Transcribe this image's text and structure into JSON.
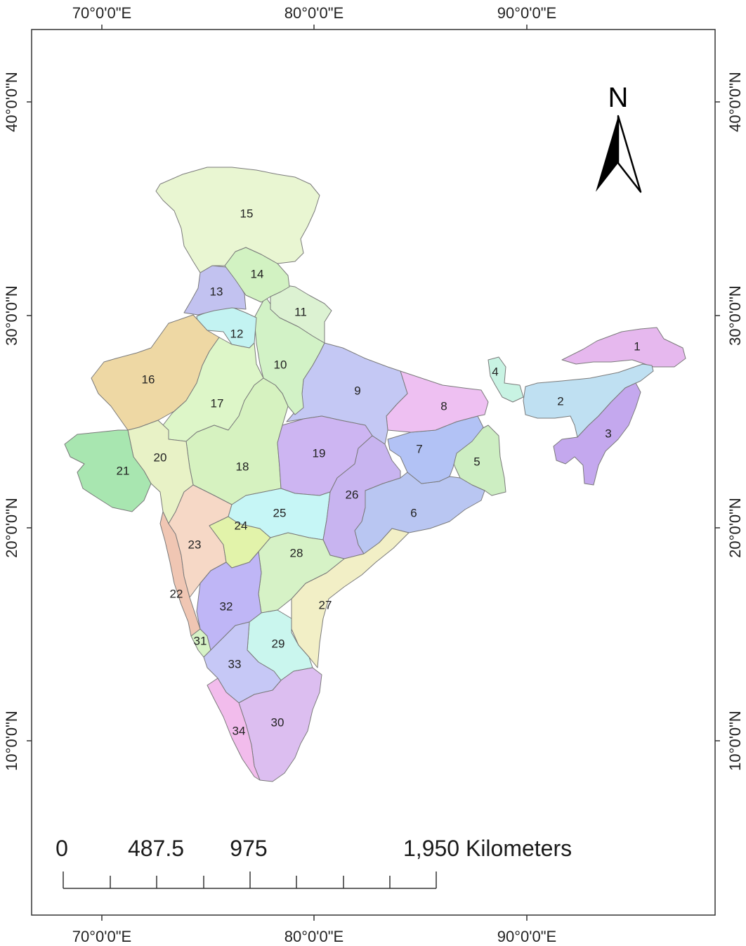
{
  "map": {
    "lon_labels": [
      "70°0'0\"E",
      "80°0'0\"E",
      "90°0'0\"E"
    ],
    "lat_labels": [
      "40°0'0\"N",
      "30°0'0\"N",
      "20°0'0\"N",
      "10°0'0\"N"
    ],
    "north_label": "N",
    "scale_bar": {
      "labels": [
        "0",
        "487.5",
        "975",
        "1,950 Kilometers"
      ]
    },
    "regions": [
      {
        "id": "1",
        "color": "#e6b8ee"
      },
      {
        "id": "2",
        "color": "#bfe0f2"
      },
      {
        "id": "3",
        "color": "#c4a8ee"
      },
      {
        "id": "4",
        "color": "#c8f3e3"
      },
      {
        "id": "5",
        "color": "#cdeec2"
      },
      {
        "id": "6",
        "color": "#b9c6f2"
      },
      {
        "id": "7",
        "color": "#b2c2f5"
      },
      {
        "id": "8",
        "color": "#eec0f2"
      },
      {
        "id": "9",
        "color": "#c4c8f4"
      },
      {
        "id": "10",
        "color": "#d2f2c6"
      },
      {
        "id": "11",
        "color": "#dcf2d2"
      },
      {
        "id": "12",
        "color": "#c3f3f2"
      },
      {
        "id": "13",
        "color": "#c2c2f0"
      },
      {
        "id": "14",
        "color": "#d2f2c2"
      },
      {
        "id": "15",
        "color": "#e9f6d2"
      },
      {
        "id": "16",
        "color": "#eed8a4"
      },
      {
        "id": "17",
        "color": "#ddf6c8"
      },
      {
        "id": "18",
        "color": "#d6f2c0"
      },
      {
        "id": "19",
        "color": "#cdb5f2"
      },
      {
        "id": "20",
        "color": "#e8f2c6"
      },
      {
        "id": "21",
        "color": "#a8e6b0"
      },
      {
        "id": "22",
        "color": "#f0c6b3"
      },
      {
        "id": "23",
        "color": "#f6d8c6"
      },
      {
        "id": "24",
        "color": "#e2f3aa"
      },
      {
        "id": "25",
        "color": "#c6f6f6"
      },
      {
        "id": "26",
        "color": "#c8b4f0"
      },
      {
        "id": "27",
        "color": "#f2efc6"
      },
      {
        "id": "28",
        "color": "#d6f2c6"
      },
      {
        "id": "29",
        "color": "#caf6ee"
      },
      {
        "id": "30",
        "color": "#dcbef0"
      },
      {
        "id": "31",
        "color": "#d6f2c6"
      },
      {
        "id": "32",
        "color": "#bfb6f6"
      },
      {
        "id": "33",
        "color": "#c6c8f6"
      },
      {
        "id": "34",
        "color": "#f2bcec"
      }
    ]
  }
}
